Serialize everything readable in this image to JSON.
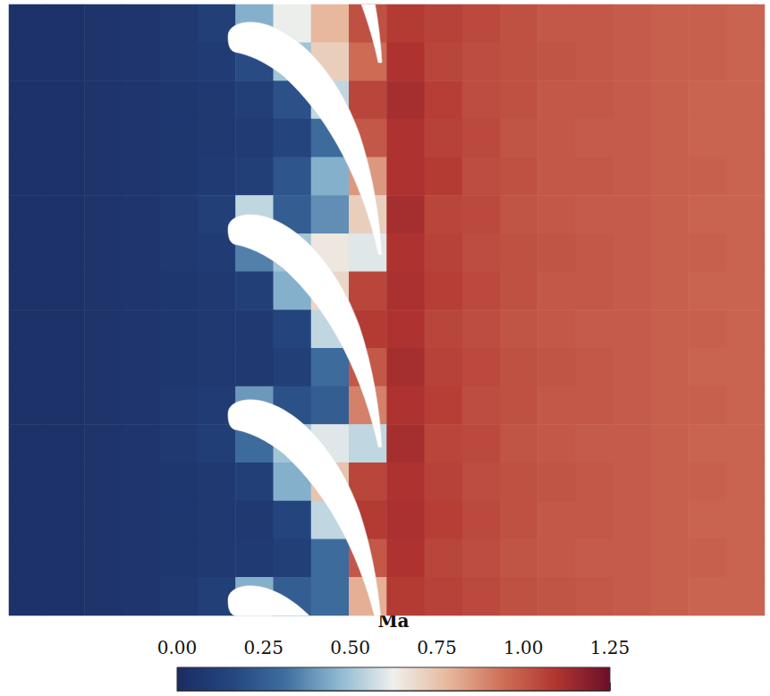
{
  "chart_data": {
    "type": "heatmap",
    "tick_labels": false,
    "field": [
      [
        0.04,
        0.04,
        0.05,
        0.06,
        0.08,
        0.12,
        0.45,
        0.62,
        0.78,
        1.02,
        1.08,
        1.06,
        1.04,
        1.02,
        1.0,
        1.0,
        0.99,
        0.98,
        0.98,
        0.97
      ],
      [
        0.04,
        0.04,
        0.05,
        0.06,
        0.08,
        0.1,
        0.18,
        0.5,
        0.72,
        0.95,
        1.1,
        1.05,
        1.03,
        1.02,
        1.01,
        1.0,
        0.99,
        0.98,
        0.98,
        0.97
      ],
      [
        0.04,
        0.04,
        0.05,
        0.06,
        0.07,
        0.08,
        0.12,
        0.2,
        0.55,
        1.05,
        1.12,
        1.07,
        1.03,
        1.02,
        1.0,
        1.0,
        0.99,
        0.98,
        0.97,
        0.97
      ],
      [
        0.04,
        0.04,
        0.05,
        0.06,
        0.07,
        0.08,
        0.1,
        0.15,
        0.3,
        1.0,
        1.1,
        1.06,
        1.04,
        1.01,
        1.0,
        0.99,
        0.99,
        0.98,
        0.97,
        0.97
      ],
      [
        0.04,
        0.04,
        0.05,
        0.06,
        0.07,
        0.09,
        0.12,
        0.22,
        0.45,
        0.85,
        1.1,
        1.08,
        1.03,
        1.02,
        1.0,
        1.0,
        0.99,
        0.98,
        0.98,
        0.97
      ],
      [
        0.04,
        0.04,
        0.05,
        0.06,
        0.08,
        0.12,
        0.55,
        0.25,
        0.38,
        0.72,
        1.12,
        1.05,
        1.04,
        1.01,
        1.0,
        0.99,
        0.99,
        0.98,
        0.97,
        0.97
      ],
      [
        0.04,
        0.04,
        0.05,
        0.06,
        0.08,
        0.1,
        0.35,
        0.5,
        0.65,
        0.6,
        1.1,
        1.06,
        1.03,
        1.02,
        1.01,
        1.0,
        0.99,
        0.98,
        0.98,
        0.97
      ],
      [
        0.04,
        0.04,
        0.05,
        0.06,
        0.07,
        0.08,
        0.12,
        0.45,
        0.7,
        1.05,
        1.11,
        1.07,
        1.04,
        1.02,
        1.0,
        1.0,
        0.99,
        0.98,
        0.97,
        0.97
      ],
      [
        0.04,
        0.04,
        0.05,
        0.06,
        0.07,
        0.08,
        0.08,
        0.15,
        0.55,
        1.08,
        1.1,
        1.05,
        1.03,
        1.01,
        1.0,
        0.99,
        0.99,
        0.98,
        0.98,
        0.97
      ],
      [
        0.04,
        0.04,
        0.05,
        0.06,
        0.07,
        0.08,
        0.08,
        0.12,
        0.3,
        1.0,
        1.12,
        1.06,
        1.04,
        1.02,
        1.01,
        1.0,
        0.99,
        0.98,
        0.97,
        0.97
      ],
      [
        0.04,
        0.04,
        0.05,
        0.06,
        0.08,
        0.1,
        0.4,
        0.2,
        0.25,
        0.9,
        1.1,
        1.07,
        1.03,
        1.02,
        1.0,
        1.0,
        0.99,
        0.98,
        0.98,
        0.97
      ],
      [
        0.04,
        0.04,
        0.05,
        0.06,
        0.08,
        0.11,
        0.3,
        0.5,
        0.6,
        0.55,
        1.12,
        1.05,
        1.04,
        1.01,
        1.0,
        0.99,
        0.99,
        0.98,
        0.97,
        0.97
      ],
      [
        0.04,
        0.04,
        0.05,
        0.06,
        0.07,
        0.08,
        0.12,
        0.45,
        0.75,
        1.05,
        1.1,
        1.06,
        1.03,
        1.02,
        1.01,
        1.0,
        0.99,
        0.98,
        0.98,
        0.97
      ],
      [
        0.04,
        0.04,
        0.05,
        0.06,
        0.07,
        0.08,
        0.08,
        0.15,
        0.55,
        1.08,
        1.11,
        1.07,
        1.04,
        1.02,
        1.0,
        1.0,
        0.99,
        0.98,
        0.97,
        0.97
      ],
      [
        0.04,
        0.04,
        0.05,
        0.06,
        0.07,
        0.08,
        0.09,
        0.12,
        0.3,
        1.0,
        1.1,
        1.05,
        1.03,
        1.01,
        1.0,
        0.99,
        0.99,
        0.98,
        0.98,
        0.97
      ],
      [
        0.04,
        0.04,
        0.05,
        0.06,
        0.08,
        0.12,
        0.45,
        0.25,
        0.3,
        0.8,
        1.08,
        1.06,
        1.04,
        1.02,
        1.01,
        1.0,
        0.99,
        0.98,
        0.97,
        0.97
      ]
    ],
    "colorbar": {
      "title": "Ma",
      "range": [
        0,
        1.25
      ],
      "ticks": [
        {
          "value": 0,
          "label": "0.00"
        },
        0.25,
        {
          "value": 0.5,
          "label": "0.50"
        },
        0.75,
        {
          "value": 1,
          "label": "1.00"
        },
        1.25
      ],
      "colors": [
        "#1b2c62",
        "#24457f",
        "#3f6e9f",
        "#8fb9d2",
        "#eef0ec",
        "#e7b89d",
        "#cf7058",
        "#b13530",
        "#6b0f2a"
      ]
    }
  }
}
